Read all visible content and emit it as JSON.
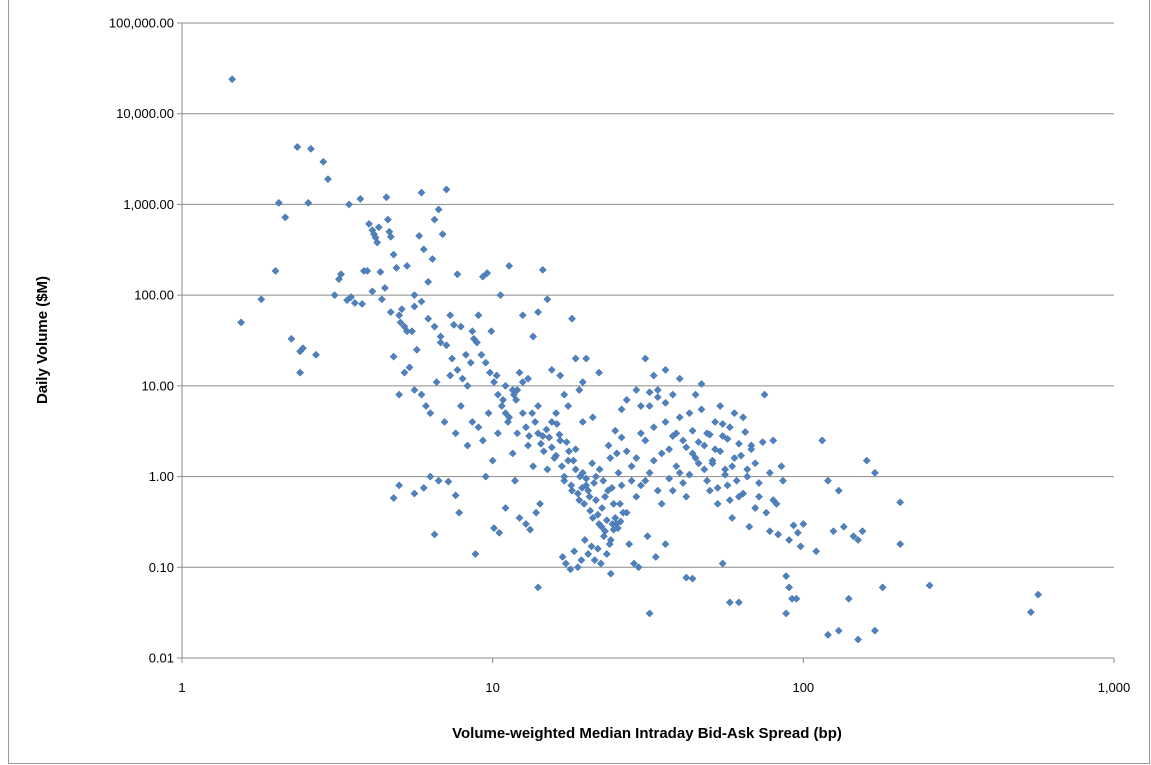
{
  "chart_data": {
    "type": "scatter",
    "title": "",
    "xlabel": "Volume-weighted Median Intraday Bid-Ask Spread (bp)",
    "ylabel": "Daily Volume ($M)",
    "x_scale": "log",
    "y_scale": "log",
    "xlim": [
      1,
      1000
    ],
    "ylim": [
      0.01,
      100000
    ],
    "x_ticks": [
      "1",
      "10",
      "100",
      "1,000"
    ],
    "y_ticks": [
      "0.01",
      "0.10",
      "1.00",
      "10.00",
      "100.00",
      "1,000.00",
      "10,000.00",
      "100,000.00"
    ],
    "grid": "horizontal major gridlines",
    "legend": "none",
    "marker": "diamond",
    "marker_color": "#4F81BD",
    "points": [
      [
        1.45,
        24000
      ],
      [
        1.55,
        50
      ],
      [
        1.8,
        90
      ],
      [
        2.0,
        185
      ],
      [
        2.05,
        1040
      ],
      [
        2.15,
        720
      ],
      [
        2.25,
        33
      ],
      [
        2.35,
        4300
      ],
      [
        2.4,
        14
      ],
      [
        2.4,
        24
      ],
      [
        2.45,
        26
      ],
      [
        2.55,
        1040
      ],
      [
        2.6,
        4100
      ],
      [
        2.7,
        22
      ],
      [
        2.85,
        2950
      ],
      [
        2.95,
        1900
      ],
      [
        3.1,
        100
      ],
      [
        3.2,
        150
      ],
      [
        3.25,
        170
      ],
      [
        3.4,
        88
      ],
      [
        3.45,
        1000
      ],
      [
        3.5,
        95
      ],
      [
        3.6,
        82
      ],
      [
        3.75,
        1150
      ],
      [
        3.85,
        185
      ],
      [
        3.95,
        185
      ],
      [
        4.0,
        610
      ],
      [
        4.1,
        520
      ],
      [
        4.15,
        470
      ],
      [
        4.2,
        430
      ],
      [
        4.25,
        380
      ],
      [
        4.3,
        560
      ],
      [
        4.35,
        180
      ],
      [
        4.5,
        120
      ],
      [
        4.55,
        1200
      ],
      [
        4.6,
        680
      ],
      [
        4.65,
        500
      ],
      [
        4.7,
        440
      ],
      [
        4.8,
        280
      ],
      [
        4.9,
        200
      ],
      [
        5.05,
        50
      ],
      [
        5.1,
        70
      ],
      [
        5.2,
        45
      ],
      [
        5.3,
        210
      ],
      [
        5.5,
        40
      ],
      [
        5.6,
        75
      ],
      [
        5.7,
        25
      ],
      [
        5.8,
        450
      ],
      [
        5.9,
        1350
      ],
      [
        6.0,
        320
      ],
      [
        6.2,
        140
      ],
      [
        6.4,
        250
      ],
      [
        6.5,
        680
      ],
      [
        6.7,
        880
      ],
      [
        6.9,
        470
      ],
      [
        7.1,
        1460
      ],
      [
        7.3,
        60
      ],
      [
        7.5,
        47
      ],
      [
        7.7,
        170
      ],
      [
        7.9,
        45
      ],
      [
        8.2,
        22
      ],
      [
        8.5,
        18
      ],
      [
        8.7,
        33
      ],
      [
        9.0,
        60
      ],
      [
        9.3,
        160
      ],
      [
        9.6,
        175
      ],
      [
        9.9,
        40
      ],
      [
        10.3,
        13
      ],
      [
        10.6,
        100
      ],
      [
        11.0,
        10
      ],
      [
        11.3,
        210
      ],
      [
        11.7,
        8
      ],
      [
        12.0,
        9
      ],
      [
        12.5,
        60
      ],
      [
        13.0,
        12
      ],
      [
        13.5,
        35
      ],
      [
        14.0,
        65
      ],
      [
        14.5,
        190
      ],
      [
        15.0,
        90
      ],
      [
        15.5,
        15
      ],
      [
        16.0,
        5
      ],
      [
        16.5,
        13
      ],
      [
        17.0,
        8
      ],
      [
        17.5,
        6
      ],
      [
        18.0,
        55
      ],
      [
        18.5,
        20
      ],
      [
        19.0,
        9
      ],
      [
        19.5,
        4
      ],
      [
        20.0,
        20
      ],
      [
        4.8,
        21
      ],
      [
        5.0,
        8
      ],
      [
        5.2,
        14
      ],
      [
        5.4,
        16
      ],
      [
        5.6,
        9
      ],
      [
        5.9,
        8
      ],
      [
        6.1,
        6
      ],
      [
        6.3,
        5
      ],
      [
        6.6,
        11
      ],
      [
        6.8,
        30
      ],
      [
        7.0,
        4
      ],
      [
        7.3,
        13
      ],
      [
        7.6,
        3
      ],
      [
        7.9,
        6
      ],
      [
        8.3,
        2.2
      ],
      [
        8.6,
        4
      ],
      [
        9.0,
        3.5
      ],
      [
        9.3,
        2.5
      ],
      [
        9.7,
        5
      ],
      [
        10.0,
        1.5
      ],
      [
        10.4,
        3
      ],
      [
        10.8,
        7
      ],
      [
        11.2,
        4
      ],
      [
        11.6,
        1.8
      ],
      [
        12.0,
        3
      ],
      [
        12.5,
        5
      ],
      [
        13.0,
        2.2
      ],
      [
        13.5,
        1.3
      ],
      [
        14.0,
        6
      ],
      [
        14.5,
        2.8
      ],
      [
        15.0,
        1.2
      ],
      [
        15.5,
        4
      ],
      [
        16.0,
        1.7
      ],
      [
        16.5,
        2.5
      ],
      [
        17.0,
        0.9
      ],
      [
        17.5,
        1.5
      ],
      [
        18.0,
        0.7
      ],
      [
        18.5,
        2
      ],
      [
        19.0,
        0.55
      ],
      [
        19.5,
        1.1
      ],
      [
        20.0,
        0.8
      ],
      [
        20.5,
        0.6
      ],
      [
        21.0,
        0.35
      ],
      [
        21.5,
        1.0
      ],
      [
        22.0,
        0.3
      ],
      [
        22.5,
        0.45
      ],
      [
        23.0,
        0.25
      ],
      [
        23.5,
        0.7
      ],
      [
        24.0,
        0.2
      ],
      [
        24.5,
        0.5
      ],
      [
        25.0,
        0.3
      ],
      [
        26.0,
        0.8
      ],
      [
        27.0,
        0.4
      ],
      [
        28.0,
        1.3
      ],
      [
        29.0,
        0.6
      ],
      [
        30.0,
        3
      ],
      [
        31.0,
        0.9
      ],
      [
        32.0,
        6
      ],
      [
        33.0,
        1.5
      ],
      [
        34.0,
        9
      ],
      [
        35.0,
        0.5
      ],
      [
        36.0,
        4
      ],
      [
        37.0,
        2
      ],
      [
        38.0,
        0.7
      ],
      [
        39.0,
        3
      ],
      [
        40.0,
        1.1
      ],
      [
        41.0,
        2.5
      ],
      [
        42.0,
        0.6
      ],
      [
        43.0,
        5
      ],
      [
        44.0,
        1.8
      ],
      [
        45.0,
        8
      ],
      [
        46.0,
        1.4
      ],
      [
        47.0,
        10.5
      ],
      [
        48.0,
        2.2
      ],
      [
        49.0,
        3
      ],
      [
        50.0,
        0.7
      ],
      [
        51.0,
        1.5
      ],
      [
        52.0,
        2
      ],
      [
        53.0,
        0.5
      ],
      [
        54.0,
        6
      ],
      [
        55.0,
        2.8
      ],
      [
        56.0,
        1.2
      ],
      [
        57.0,
        0.8
      ],
      [
        58.0,
        3.5
      ],
      [
        59.0,
        0.35
      ],
      [
        60.0,
        1.6
      ],
      [
        62.0,
        0.6
      ],
      [
        64.0,
        4.5
      ],
      [
        66.0,
        1
      ],
      [
        68.0,
        2.2
      ],
      [
        70.0,
        0.45
      ],
      [
        72.0,
        0.6
      ],
      [
        75.0,
        8
      ],
      [
        78.0,
        0.25
      ],
      [
        80.0,
        2.5
      ],
      [
        82.0,
        0.5
      ],
      [
        85.0,
        1.3
      ],
      [
        88.0,
        0.08
      ],
      [
        90.0,
        0.06
      ],
      [
        92.0,
        0.045
      ],
      [
        95.0,
        0.045
      ],
      [
        98.0,
        0.17
      ],
      [
        100.0,
        0.3
      ],
      [
        110.0,
        0.15
      ],
      [
        115.0,
        2.5
      ],
      [
        120.0,
        0.9
      ],
      [
        125.0,
        0.25
      ],
      [
        130.0,
        0.7
      ],
      [
        135.0,
        0.28
      ],
      [
        140.0,
        0.045
      ],
      [
        145.0,
        0.22
      ],
      [
        150.0,
        0.2
      ],
      [
        155.0,
        0.25
      ],
      [
        160.0,
        1.5
      ],
      [
        170.0,
        1.1
      ],
      [
        180.0,
        0.06
      ],
      [
        205.0,
        0.52
      ],
      [
        205.0,
        0.18
      ],
      [
        255.0,
        0.063
      ],
      [
        540.0,
        0.032
      ],
      [
        570.0,
        0.05
      ],
      [
        150.0,
        0.016
      ],
      [
        170.0,
        0.02
      ],
      [
        130.0,
        0.02
      ],
      [
        120.0,
        0.018
      ],
      [
        88.0,
        0.031
      ],
      [
        62.0,
        0.041
      ],
      [
        32.0,
        0.031
      ],
      [
        14.0,
        0.06
      ],
      [
        42.0,
        0.077
      ],
      [
        55.0,
        0.11
      ],
      [
        24.0,
        0.085
      ],
      [
        8.8,
        0.14
      ],
      [
        6.5,
        0.23
      ],
      [
        4.8,
        0.58
      ],
      [
        5.0,
        0.8
      ],
      [
        5.6,
        0.65
      ],
      [
        6.0,
        0.75
      ],
      [
        6.3,
        1.0
      ],
      [
        6.7,
        0.9
      ],
      [
        7.2,
        0.88
      ],
      [
        7.6,
        0.62
      ],
      [
        7.8,
        0.4
      ],
      [
        9.5,
        1.0
      ],
      [
        10.1,
        0.27
      ],
      [
        10.5,
        0.24
      ],
      [
        11.0,
        0.45
      ],
      [
        11.8,
        0.9
      ],
      [
        12.2,
        0.35
      ],
      [
        12.8,
        0.3
      ],
      [
        13.2,
        0.26
      ],
      [
        13.8,
        0.4
      ],
      [
        14.2,
        0.5
      ],
      [
        16.8,
        0.13
      ],
      [
        17.2,
        0.11
      ],
      [
        17.8,
        0.095
      ],
      [
        18.3,
        0.15
      ],
      [
        18.8,
        0.1
      ],
      [
        19.3,
        0.12
      ],
      [
        19.8,
        0.2
      ],
      [
        20.3,
        0.14
      ],
      [
        20.8,
        0.17
      ],
      [
        21.3,
        0.12
      ],
      [
        21.8,
        0.16
      ],
      [
        22.3,
        0.11
      ],
      [
        22.8,
        0.22
      ],
      [
        23.3,
        0.14
      ],
      [
        23.8,
        0.18
      ],
      [
        24.3,
        0.3
      ],
      [
        24.8,
        0.35
      ],
      [
        25.3,
        0.27
      ],
      [
        25.8,
        0.32
      ],
      [
        26.3,
        0.4
      ],
      [
        27.5,
        0.18
      ],
      [
        28.5,
        0.11
      ],
      [
        29.5,
        0.1
      ],
      [
        31.5,
        0.22
      ],
      [
        33.5,
        0.13
      ],
      [
        36.0,
        0.18
      ],
      [
        44.0,
        0.075
      ],
      [
        58.0,
        0.041
      ],
      [
        3.8,
        80
      ],
      [
        4.1,
        110
      ],
      [
        4.4,
        90
      ],
      [
        4.7,
        65
      ],
      [
        5.0,
        60
      ],
      [
        5.3,
        40
      ],
      [
        5.6,
        100
      ],
      [
        5.9,
        85
      ],
      [
        6.2,
        55
      ],
      [
        6.5,
        45
      ],
      [
        6.8,
        35
      ],
      [
        7.1,
        28
      ],
      [
        7.4,
        20
      ],
      [
        7.7,
        15
      ],
      [
        8.0,
        12
      ],
      [
        8.3,
        10
      ],
      [
        8.6,
        40
      ],
      [
        8.9,
        30
      ],
      [
        9.2,
        22
      ],
      [
        9.5,
        18
      ],
      [
        9.8,
        14
      ],
      [
        10.1,
        11
      ],
      [
        10.4,
        8
      ],
      [
        10.7,
        6
      ],
      [
        11.0,
        5
      ],
      [
        11.3,
        4.5
      ],
      [
        11.6,
        9
      ],
      [
        11.9,
        7
      ],
      [
        12.2,
        14
      ],
      [
        12.5,
        11
      ],
      [
        12.8,
        3.5
      ],
      [
        13.1,
        2.8
      ],
      [
        13.4,
        5
      ],
      [
        13.7,
        4
      ],
      [
        14.0,
        3
      ],
      [
        14.3,
        2.3
      ],
      [
        14.6,
        1.9
      ],
      [
        14.9,
        3.3
      ],
      [
        15.2,
        2.7
      ],
      [
        15.5,
        2.1
      ],
      [
        15.8,
        1.6
      ],
      [
        16.1,
        3.8
      ],
      [
        16.4,
        2.9
      ],
      [
        16.7,
        1.3
      ],
      [
        17.0,
        1.0
      ],
      [
        17.3,
        2.4
      ],
      [
        17.6,
        1.9
      ],
      [
        17.9,
        0.8
      ],
      [
        18.2,
        1.5
      ],
      [
        18.5,
        1.2
      ],
      [
        18.8,
        0.65
      ],
      [
        19.1,
        1.0
      ],
      [
        19.4,
        0.75
      ],
      [
        19.7,
        0.5
      ],
      [
        20.0,
        0.95
      ],
      [
        20.3,
        0.7
      ],
      [
        20.6,
        0.42
      ],
      [
        20.9,
        1.4
      ],
      [
        21.2,
        0.85
      ],
      [
        21.5,
        0.55
      ],
      [
        21.8,
        0.38
      ],
      [
        22.1,
        1.2
      ],
      [
        22.4,
        0.28
      ],
      [
        22.7,
        0.9
      ],
      [
        23.0,
        0.6
      ],
      [
        23.3,
        0.33
      ],
      [
        23.6,
        2.2
      ],
      [
        23.9,
        1.6
      ],
      [
        24.2,
        0.75
      ],
      [
        24.5,
        0.26
      ],
      [
        24.8,
        3.2
      ],
      [
        25.1,
        1.8
      ],
      [
        25.4,
        1.1
      ],
      [
        25.7,
        0.5
      ],
      [
        26.0,
        2.7
      ],
      [
        27.0,
        1.9
      ],
      [
        28.0,
        0.9
      ],
      [
        29.0,
        1.6
      ],
      [
        30.0,
        0.8
      ],
      [
        31.0,
        2.5
      ],
      [
        32.0,
        1.1
      ],
      [
        33.0,
        3.5
      ],
      [
        34.0,
        0.7
      ],
      [
        35.0,
        1.8
      ],
      [
        36.0,
        6.5
      ],
      [
        37.0,
        0.95
      ],
      [
        38.0,
        2.8
      ],
      [
        39.0,
        1.3
      ],
      [
        40.0,
        4.5
      ],
      [
        41.0,
        0.85
      ],
      [
        42.0,
        2.1
      ],
      [
        43.0,
        1.05
      ],
      [
        44.0,
        3.2
      ],
      [
        45.0,
        1.6
      ],
      [
        46.0,
        2.4
      ],
      [
        47.0,
        5.5
      ],
      [
        48.0,
        1.2
      ],
      [
        49.0,
        0.9
      ],
      [
        50.0,
        2.9
      ],
      [
        51.0,
        1.4
      ],
      [
        52.0,
        4
      ],
      [
        53.0,
        0.75
      ],
      [
        54.0,
        1.9
      ],
      [
        55.0,
        3.8
      ],
      [
        56.0,
        1.05
      ],
      [
        57.0,
        2.6
      ],
      [
        58.0,
        0.55
      ],
      [
        59.0,
        1.3
      ],
      [
        60.0,
        5
      ],
      [
        61.0,
        0.9
      ],
      [
        62.0,
        2.3
      ],
      [
        63.0,
        1.7
      ],
      [
        64.0,
        0.65
      ],
      [
        65.0,
        3.1
      ],
      [
        66.0,
        1.2
      ],
      [
        67.0,
        0.28
      ],
      [
        68.0,
        2
      ],
      [
        70.0,
        1.4
      ],
      [
        72.0,
        0.85
      ],
      [
        74.0,
        2.4
      ],
      [
        76.0,
        0.4
      ],
      [
        78.0,
        1.1
      ],
      [
        80.0,
        0.55
      ],
      [
        83.0,
        0.23
      ],
      [
        86.0,
        0.9
      ],
      [
        90.0,
        0.2
      ],
      [
        93.0,
        0.29
      ],
      [
        96.0,
        0.24
      ],
      [
        36.0,
        15
      ],
      [
        38.0,
        8
      ],
      [
        40.0,
        12
      ],
      [
        33.0,
        13
      ],
      [
        31.0,
        20
      ],
      [
        29.0,
        9
      ],
      [
        27.0,
        7
      ],
      [
        22.0,
        14
      ],
      [
        21.0,
        4.5
      ],
      [
        19.5,
        11
      ],
      [
        26.0,
        5.5
      ],
      [
        30.0,
        6
      ],
      [
        34.0,
        7.5
      ],
      [
        32.0,
        8.5
      ]
    ]
  }
}
